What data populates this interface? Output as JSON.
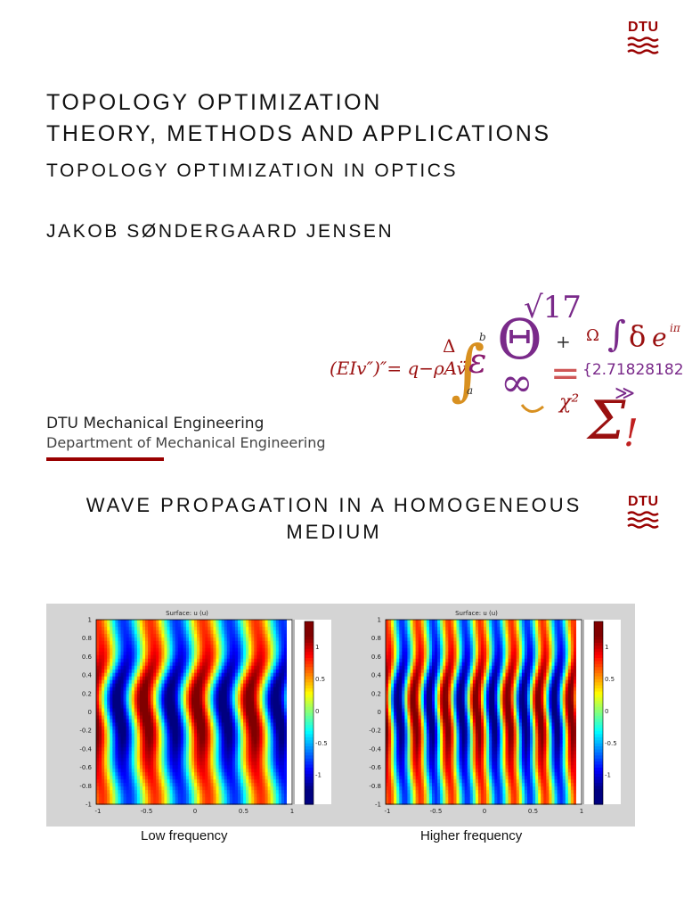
{
  "slide1": {
    "logo_text": "DTU",
    "title_line1": "TOPOLOGY OPTIMIZATION",
    "title_line2": "THEORY, METHODS AND APPLICATIONS",
    "subtitle": "TOPOLOGY OPTIMIZATION IN OPTICS",
    "author": "JAKOB SØNDERGAARD JENSEN",
    "dept_bold": "DTU Mechanical Engineering",
    "dept_full": "Department of Mechanical Engineering",
    "math_art": {
      "equation": "(EIv″)″= q−ρAv̈",
      "e_value": "{2.71828182",
      "sqrt_value": "√17",
      "glyphs": [
        "Δ",
        "∫",
        "b",
        "a",
        "ε",
        "Θ",
        "+",
        "Ω",
        "∫",
        "δ",
        "e",
        "iπ",
        "∞",
        "χ²",
        "Σ",
        "!",
        "≫",
        "="
      ]
    }
  },
  "slide2": {
    "logo_text": "DTU",
    "title": "WAVE PROPAGATION IN A HOMOGENEOUS MEDIUM",
    "plots": [
      {
        "caption": "Low frequency",
        "plot_title": "Surface: u (u)",
        "x_ticks": [
          "-1",
          "-0.5",
          "0",
          "0.5",
          "1"
        ],
        "y_ticks": [
          "1",
          "0.8",
          "0.6",
          "0.4",
          "0.2",
          "0",
          "-0.2",
          "-0.4",
          "-0.6",
          "-0.8",
          "-1"
        ],
        "colorbar_ticks": [
          "1",
          "0.5",
          "0",
          "-0.5",
          "-1"
        ]
      },
      {
        "caption": "Higher frequency",
        "plot_title": "Surface: u (u)",
        "x_ticks": [
          "-1",
          "-0.5",
          "0",
          "0.5",
          "1"
        ],
        "y_ticks": [
          "1",
          "0.8",
          "0.6",
          "0.4",
          "0.2",
          "0",
          "-0.2",
          "-0.4",
          "-0.6",
          "-0.8",
          "-1"
        ],
        "colorbar_ticks": [
          "1",
          "0.5",
          "0",
          "-0.5",
          "-1"
        ]
      }
    ]
  },
  "colors": {
    "dtu_red": "#990000",
    "title_text": "#111111",
    "panel_gray": "#d4d4d4"
  }
}
